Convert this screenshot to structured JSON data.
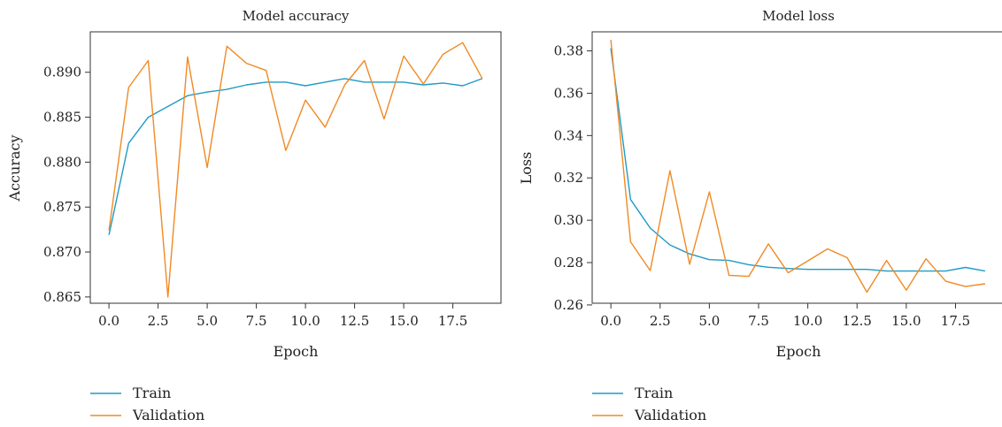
{
  "chart_data": [
    {
      "type": "line",
      "title": "Model accuracy",
      "xlabel": "Epoch",
      "ylabel": "Accuracy",
      "x": [
        0,
        1,
        2,
        3,
        4,
        5,
        6,
        7,
        8,
        9,
        10,
        11,
        12,
        13,
        14,
        15,
        16,
        17,
        18,
        19
      ],
      "xlim": [
        -0.95,
        19.95
      ],
      "ylim": [
        0.8643,
        0.8945
      ],
      "xticks": [
        0.0,
        2.5,
        5.0,
        7.5,
        10.0,
        12.5,
        15.0,
        17.5
      ],
      "xtick_labels": [
        "0.0",
        "2.5",
        "5.0",
        "7.5",
        "10.0",
        "12.5",
        "15.0",
        "17.5"
      ],
      "yticks": [
        0.865,
        0.87,
        0.875,
        0.88,
        0.885,
        0.89
      ],
      "ytick_labels": [
        "0.865",
        "0.870",
        "0.875",
        "0.880",
        "0.885",
        "0.890"
      ],
      "grid": false,
      "legend_position": "below",
      "series": [
        {
          "name": "Train",
          "color": "#1f9bc4",
          "values": [
            0.8719,
            0.8821,
            0.885,
            0.8862,
            0.8874,
            0.8878,
            0.8881,
            0.8886,
            0.8889,
            0.8889,
            0.8885,
            0.8889,
            0.8893,
            0.8889,
            0.8889,
            0.8889,
            0.8886,
            0.8888,
            0.8885,
            0.8893
          ]
        },
        {
          "name": "Validation",
          "color": "#f08a24",
          "values": [
            0.8724,
            0.8883,
            0.8913,
            0.865,
            0.8917,
            0.8794,
            0.8929,
            0.891,
            0.8902,
            0.8813,
            0.8869,
            0.8839,
            0.8886,
            0.8913,
            0.8848,
            0.8918,
            0.8887,
            0.892,
            0.8933,
            0.8893
          ]
        }
      ]
    },
    {
      "type": "line",
      "title": "Model loss",
      "xlabel": "Epoch",
      "ylabel": "Loss",
      "x": [
        0,
        1,
        2,
        3,
        4,
        5,
        6,
        7,
        8,
        9,
        10,
        11,
        12,
        13,
        14,
        15,
        16,
        17,
        18,
        19
      ],
      "xlim": [
        -0.95,
        19.95
      ],
      "ylim": [
        0.2608,
        0.389
      ],
      "xticks": [
        0.0,
        2.5,
        5.0,
        7.5,
        10.0,
        12.5,
        15.0,
        17.5
      ],
      "xtick_labels": [
        "0.0",
        "2.5",
        "5.0",
        "7.5",
        "10.0",
        "12.5",
        "15.0",
        "17.5"
      ],
      "yticks": [
        0.26,
        0.28,
        0.3,
        0.32,
        0.34,
        0.36,
        0.38
      ],
      "ytick_labels": [
        "0.26",
        "0.28",
        "0.30",
        "0.32",
        "0.34",
        "0.36",
        "0.38"
      ],
      "grid": false,
      "legend_position": "below",
      "series": [
        {
          "name": "Train",
          "color": "#1f9bc4",
          "values": [
            0.3812,
            0.3098,
            0.2963,
            0.2883,
            0.2841,
            0.2814,
            0.281,
            0.279,
            0.2778,
            0.2772,
            0.2768,
            0.2768,
            0.2768,
            0.2768,
            0.276,
            0.276,
            0.276,
            0.276,
            0.2777,
            0.276
          ]
        },
        {
          "name": "Validation",
          "color": "#f08a24",
          "values": [
            0.3852,
            0.2898,
            0.2762,
            0.3234,
            0.2792,
            0.3134,
            0.274,
            0.2735,
            0.2888,
            0.2752,
            0.2808,
            0.2865,
            0.2823,
            0.266,
            0.281,
            0.267,
            0.2818,
            0.2712,
            0.2687,
            0.27
          ]
        }
      ]
    }
  ]
}
